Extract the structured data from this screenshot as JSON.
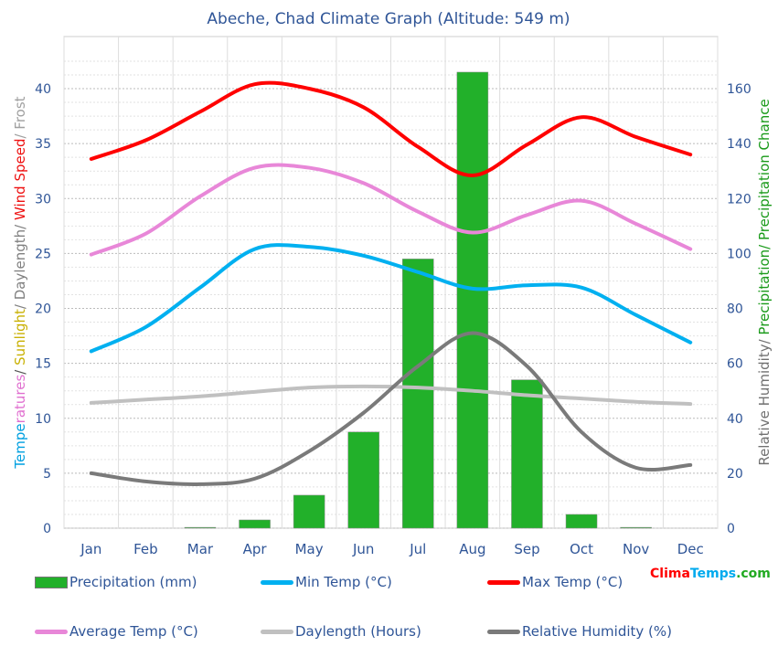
{
  "chart_data": {
    "type": "bar+line",
    "title": "Abeche, Chad Climate Graph (Altitude: 549 m)",
    "categories": [
      "Jan",
      "Feb",
      "Mar",
      "Apr",
      "May",
      "Jun",
      "Jul",
      "Aug",
      "Sep",
      "Oct",
      "Nov",
      "Dec"
    ],
    "ylabel_left_parts": [
      {
        "text": "Tempe",
        "color": "#00b0f0"
      },
      {
        "text": "ratures",
        "color": "#e87ad8"
      },
      {
        "text": "/ ",
        "color": "#555555"
      },
      {
        "text": "Sunlight",
        "color": "#f0d800"
      },
      {
        "text": "/ Daylength/ ",
        "color": "#888888"
      },
      {
        "text": "Wind Speed",
        "color": "#ff2020"
      },
      {
        "text": "/ Frost",
        "color": "#bbbbbb"
      }
    ],
    "ylabel_right_parts": [
      {
        "text": "Relative Humidity/ ",
        "color": "#777777"
      },
      {
        "text": "Precipitation/ Precipitation Chance",
        "color": "#22aa22"
      }
    ],
    "ylim_left": [
      0,
      40
    ],
    "yticks_left": [
      0,
      5,
      10,
      15,
      20,
      25,
      30,
      35,
      40
    ],
    "ylim_right": [
      0,
      160
    ],
    "yticks_right": [
      0,
      20,
      40,
      60,
      80,
      100,
      120,
      140,
      160
    ],
    "grid": true,
    "series": [
      {
        "name": "Precipitation (mm)",
        "type": "bar",
        "axis": "right",
        "color": "#22b02a",
        "values": [
          0,
          0,
          0.3,
          3,
          12,
          35,
          98,
          166,
          54,
          5,
          0.3,
          0
        ]
      },
      {
        "name": "Min Temp (°C)",
        "type": "line",
        "axis": "left",
        "color": "#00b0f0",
        "values": [
          16.1,
          18.3,
          21.9,
          25.4,
          25.6,
          24.8,
          23.3,
          21.8,
          22.1,
          21.9,
          19.4,
          16.9
        ]
      },
      {
        "name": "Max Temp (°C)",
        "type": "line",
        "axis": "left",
        "color": "#ff0000",
        "values": [
          33.6,
          35.3,
          37.9,
          40.4,
          40.0,
          38.3,
          34.7,
          32.1,
          34.9,
          37.4,
          35.6,
          34.0
        ]
      },
      {
        "name": "Average Temp (°C)",
        "type": "line",
        "axis": "left",
        "color": "#e887d8",
        "values": [
          24.9,
          26.8,
          30.2,
          32.8,
          32.8,
          31.4,
          28.8,
          26.9,
          28.5,
          29.8,
          27.7,
          25.4
        ]
      },
      {
        "name": "Daylength (Hours)",
        "type": "line",
        "axis": "left",
        "color": "#c0c0c0",
        "values": [
          11.4,
          11.7,
          12.0,
          12.4,
          12.8,
          12.9,
          12.8,
          12.5,
          12.1,
          11.8,
          11.5,
          11.3
        ]
      },
      {
        "name": "Relative Humidity (%)",
        "type": "line",
        "axis": "right",
        "color": "#7a7a7a",
        "values": [
          20,
          17,
          16,
          18,
          28,
          42,
          59,
          71,
          59,
          35,
          22,
          23
        ]
      }
    ],
    "legend_placement": "bottom"
  },
  "logo": {
    "parts": [
      {
        "text": "Clima",
        "color": "#ff0000"
      },
      {
        "text": "Temps",
        "color": "#00aaee"
      },
      {
        "text": ".com",
        "color": "#22aa22"
      }
    ]
  }
}
